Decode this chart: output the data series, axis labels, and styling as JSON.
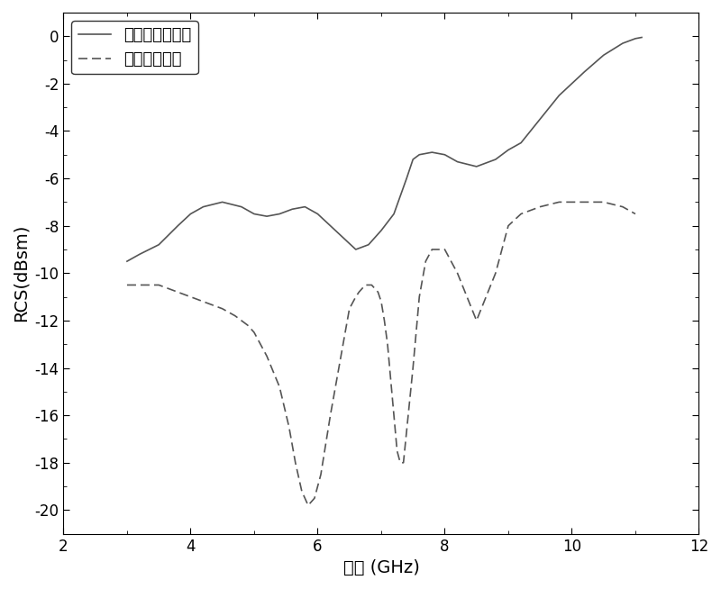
{
  "xlabel": "频率 (GHz)",
  "ylabel": "RCS(dBsm)",
  "xlim": [
    2,
    12
  ],
  "ylim": [
    -21,
    1
  ],
  "xticks": [
    2,
    4,
    6,
    8,
    10,
    12
  ],
  "yticks": [
    0,
    -2,
    -4,
    -6,
    -8,
    -10,
    -12,
    -14,
    -16,
    -18,
    -20
  ],
  "legend1": "未加载吸波材料",
  "legend2": "加载吸波材料",
  "line1_color": "#555555",
  "line2_color": "#555555",
  "background_color": "#ffffff",
  "solid_x": [
    3.0,
    3.2,
    3.5,
    3.8,
    4.0,
    4.2,
    4.5,
    4.8,
    5.0,
    5.2,
    5.4,
    5.6,
    5.8,
    6.0,
    6.2,
    6.4,
    6.6,
    6.8,
    7.0,
    7.2,
    7.4,
    7.5,
    7.6,
    7.8,
    8.0,
    8.2,
    8.5,
    8.8,
    9.0,
    9.2,
    9.5,
    9.8,
    10.0,
    10.2,
    10.5,
    10.8,
    11.0,
    11.1
  ],
  "solid_y": [
    -9.5,
    -9.2,
    -8.8,
    -8.0,
    -7.5,
    -7.2,
    -7.0,
    -7.2,
    -7.5,
    -7.6,
    -7.5,
    -7.3,
    -7.2,
    -7.5,
    -8.0,
    -8.5,
    -9.0,
    -8.8,
    -8.2,
    -7.5,
    -6.0,
    -5.2,
    -5.0,
    -4.9,
    -5.0,
    -5.3,
    -5.5,
    -5.2,
    -4.8,
    -4.5,
    -3.5,
    -2.5,
    -2.0,
    -1.5,
    -0.8,
    -0.3,
    -0.1,
    -0.05
  ],
  "dashed_x": [
    3.0,
    3.2,
    3.5,
    3.8,
    4.0,
    4.2,
    4.5,
    4.7,
    4.9,
    5.0,
    5.2,
    5.4,
    5.55,
    5.65,
    5.75,
    5.85,
    5.95,
    6.05,
    6.2,
    6.4,
    6.5,
    6.6,
    6.65,
    6.75,
    6.85,
    6.95,
    7.0,
    7.05,
    7.1,
    7.15,
    7.2,
    7.25,
    7.3,
    7.35,
    7.5,
    7.6,
    7.7,
    7.8,
    8.0,
    8.2,
    8.5,
    8.8,
    9.0,
    9.2,
    9.5,
    9.8,
    10.0,
    10.2,
    10.5,
    10.8,
    11.0
  ],
  "dashed_y": [
    -10.5,
    -10.5,
    -10.5,
    -10.8,
    -11.0,
    -11.2,
    -11.5,
    -11.8,
    -12.2,
    -12.5,
    -13.5,
    -14.8,
    -16.5,
    -18.0,
    -19.2,
    -19.8,
    -19.5,
    -18.5,
    -16.0,
    -13.0,
    -11.5,
    -11.0,
    -10.8,
    -10.5,
    -10.5,
    -10.8,
    -11.2,
    -12.0,
    -13.0,
    -14.5,
    -16.0,
    -17.5,
    -18.0,
    -18.0,
    -14.0,
    -11.0,
    -9.5,
    -9.0,
    -9.0,
    -10.0,
    -12.0,
    -10.0,
    -8.0,
    -7.5,
    -7.2,
    -7.0,
    -7.0,
    -7.0,
    -7.0,
    -7.2,
    -7.5
  ]
}
